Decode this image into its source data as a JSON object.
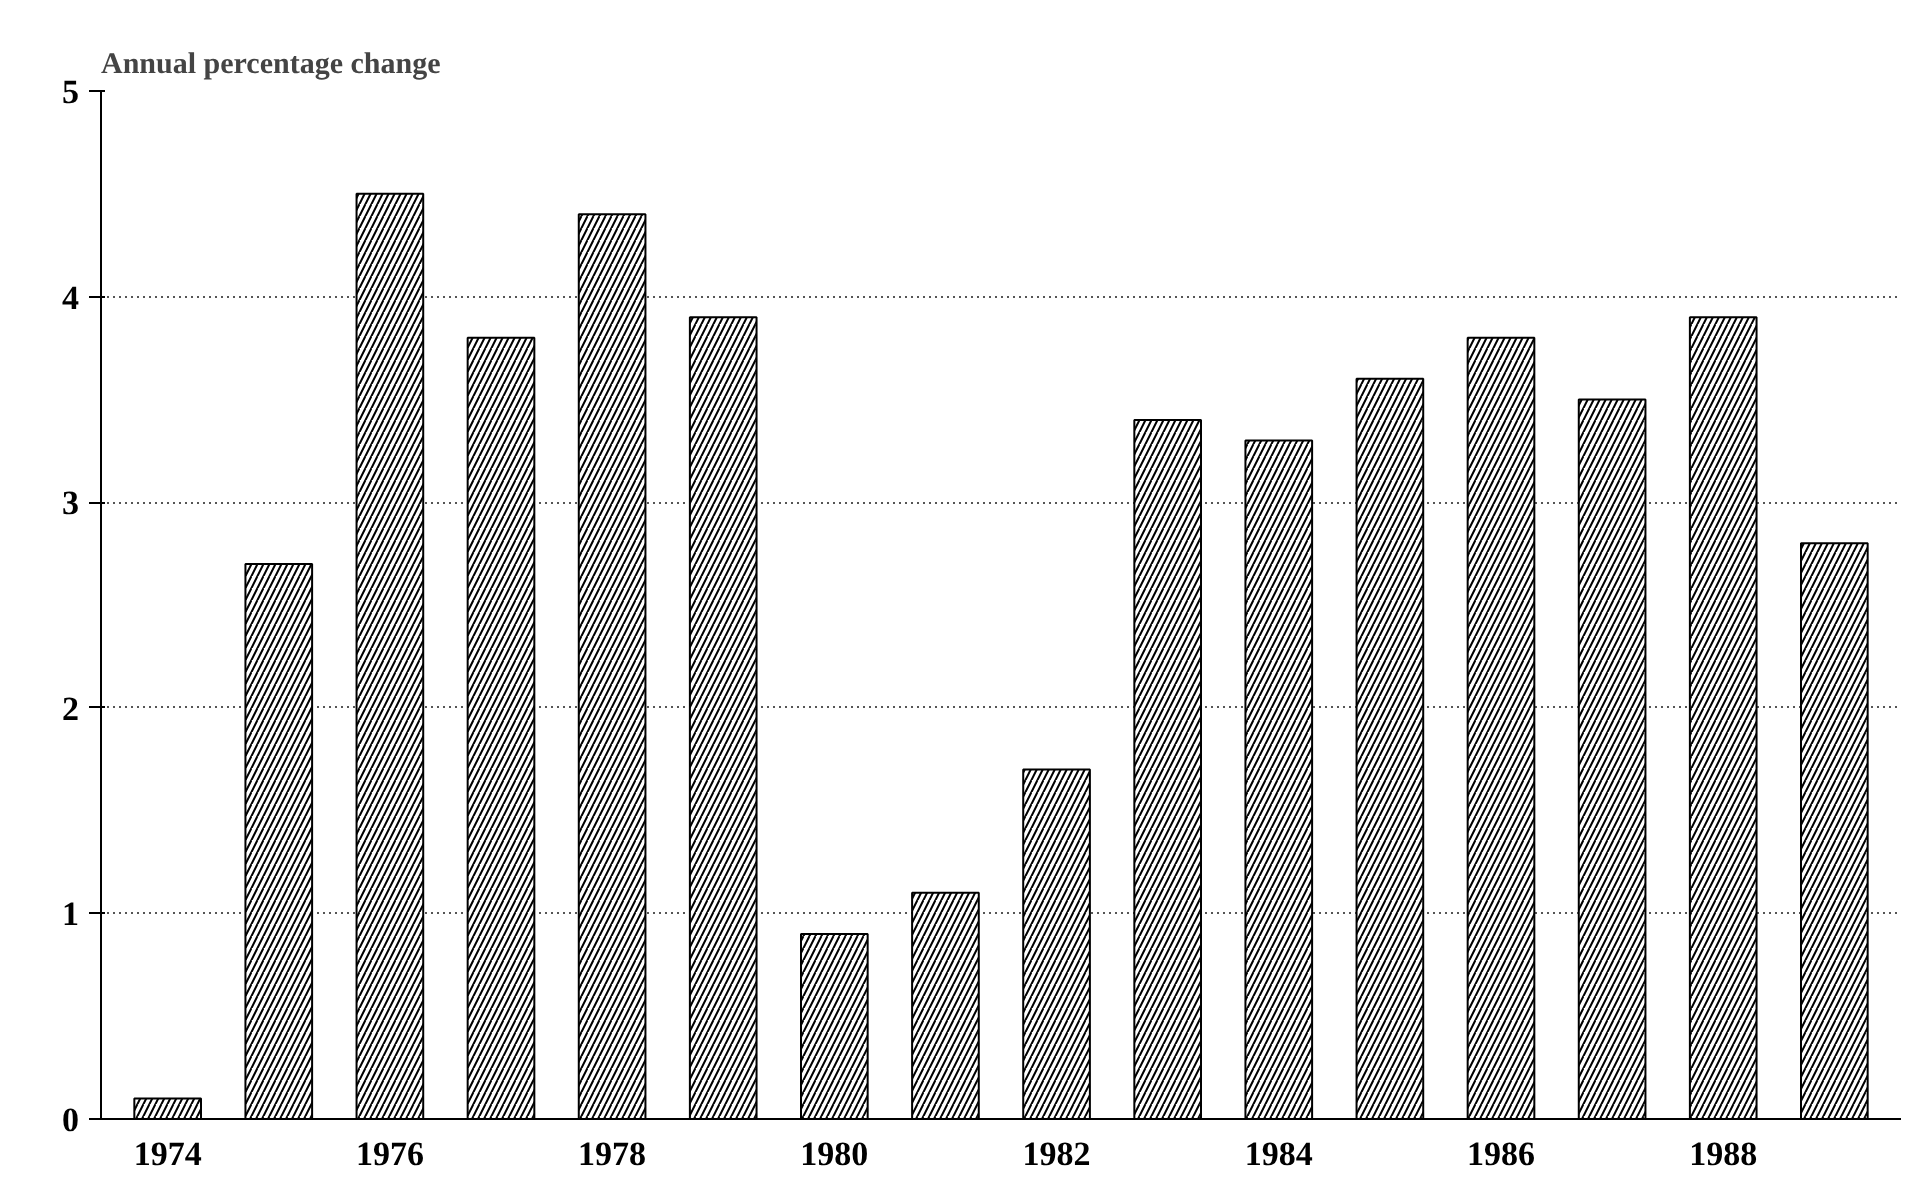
{
  "chart_data": {
    "type": "bar",
    "ylabel": "Annual percentage change",
    "categories": [
      "1974",
      null,
      "1976",
      null,
      "1978",
      null,
      "1980",
      null,
      "1982",
      null,
      "1984",
      null,
      "1986",
      null,
      "1988",
      null
    ],
    "values": [
      0.1,
      2.7,
      4.5,
      3.8,
      4.4,
      3.9,
      0.9,
      1.1,
      1.7,
      3.4,
      3.3,
      3.6,
      3.8,
      3.5,
      3.9,
      2.8
    ],
    "color": "#000000",
    "ylim": [
      0,
      5
    ],
    "yticks": [
      0,
      1,
      2,
      3,
      4,
      5
    ],
    "grid": "y"
  }
}
